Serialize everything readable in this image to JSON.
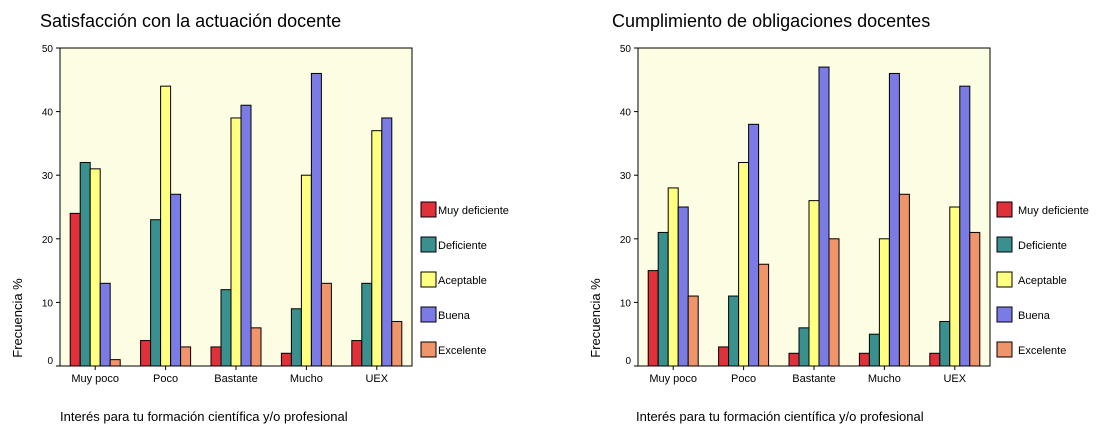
{
  "chart_data": [
    {
      "type": "bar",
      "title": "Satisfacción con la actuación docente",
      "xlabel": "Interés para tu formación científica y/o profesional",
      "ylabel": "Frecuencia %",
      "ylim": [
        0,
        50
      ],
      "yticks": [
        0,
        10,
        20,
        30,
        40,
        50
      ],
      "grid": false,
      "legend_position": "right",
      "categories": [
        "Muy poco",
        "Poco",
        "Bastante",
        "Mucho",
        "UEX"
      ],
      "series": [
        {
          "name": "Muy deficiente",
          "color": "#e0303a",
          "values": [
            24,
            4,
            3,
            2,
            4
          ]
        },
        {
          "name": "Deficiente",
          "color": "#3a8f8f",
          "values": [
            32,
            23,
            12,
            9,
            13
          ]
        },
        {
          "name": "Aceptable",
          "color": "#ffff80",
          "values": [
            31,
            44,
            39,
            30,
            37
          ]
        },
        {
          "name": "Buena",
          "color": "#7b7be6",
          "values": [
            13,
            27,
            41,
            46,
            39
          ]
        },
        {
          "name": "Excelente",
          "color": "#f0946a",
          "values": [
            1,
            3,
            6,
            13,
            7
          ]
        }
      ]
    },
    {
      "type": "bar",
      "title": "Cumplimiento de obligaciones docentes",
      "xlabel": "Interés para tu formación científica y/o profesional",
      "ylabel": "Frecuencia %",
      "ylim": [
        0,
        50
      ],
      "yticks": [
        0,
        10,
        20,
        30,
        40,
        50
      ],
      "grid": false,
      "legend_position": "right",
      "categories": [
        "Muy poco",
        "Poco",
        "Bastante",
        "Mucho",
        "UEX"
      ],
      "series": [
        {
          "name": "Muy deficiente",
          "color": "#e0303a",
          "values": [
            15,
            3,
            2,
            2,
            2
          ]
        },
        {
          "name": "Deficiente",
          "color": "#3a8f8f",
          "values": [
            21,
            11,
            6,
            5,
            7
          ]
        },
        {
          "name": "Aceptable",
          "color": "#ffff80",
          "values": [
            28,
            32,
            26,
            20,
            25
          ]
        },
        {
          "name": "Buena",
          "color": "#7b7be6",
          "values": [
            25,
            38,
            47,
            46,
            44
          ]
        },
        {
          "name": "Excelente",
          "color": "#f0946a",
          "values": [
            11,
            16,
            20,
            27,
            21
          ]
        }
      ]
    }
  ]
}
